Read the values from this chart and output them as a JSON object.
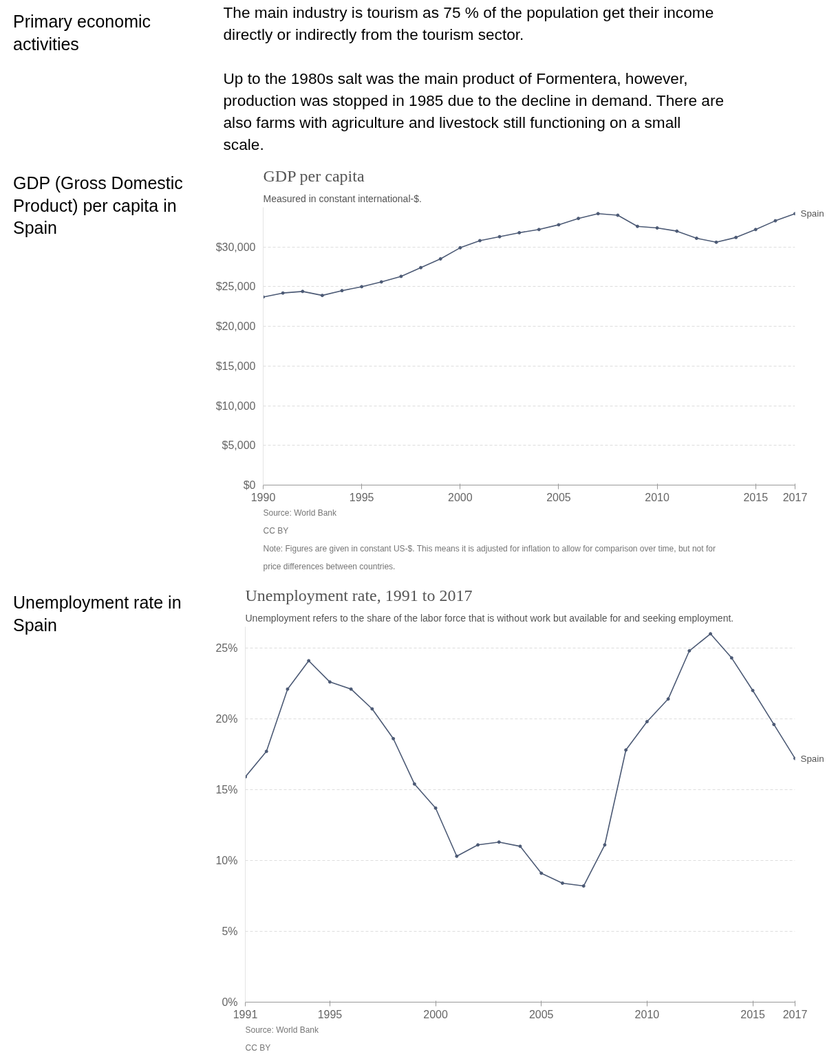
{
  "chart_data": [
    {
      "type": "other",
      "annotations": [
        "Primary economic activities",
        "The main industry is tourism as 75 % of the population get their income directly or indirectly from the tourism sector.",
        "Up to the 1980s salt was the main product of Formentera, however, production was stopped in 1985 due to the decline in demand. There are also farms with agriculture and livestock still functioning on a small scale."
      ]
    },
    {
      "type": "line",
      "title": "GDP per capita",
      "subtitle": "Measured in constant international-$.",
      "x": [
        1990,
        1991,
        1992,
        1993,
        1994,
        1995,
        1996,
        1997,
        1998,
        1999,
        2000,
        2001,
        2002,
        2003,
        2004,
        2005,
        2006,
        2007,
        2008,
        2009,
        2010,
        2011,
        2012,
        2013,
        2014,
        2015,
        2016,
        2017
      ],
      "series": [
        {
          "name": "Spain",
          "color": "#4c5a75",
          "values": [
            23700,
            24200,
            24400,
            23900,
            24500,
            25000,
            25600,
            26300,
            27400,
            28500,
            29900,
            30800,
            31300,
            31800,
            32200,
            32800,
            33600,
            34200,
            34000,
            32600,
            32400,
            32000,
            31100,
            30600,
            31200,
            32200,
            33300,
            34200
          ]
        }
      ],
      "xlim": [
        1990,
        2017
      ],
      "xticks": [
        1990,
        1995,
        2000,
        2005,
        2010,
        2015,
        2017
      ],
      "ylim": [
        0,
        35000
      ],
      "yticks": [
        {
          "value": 0,
          "label": "$0"
        },
        {
          "value": 5000,
          "label": "$5,000"
        },
        {
          "value": 10000,
          "label": "$10,000"
        },
        {
          "value": 15000,
          "label": "$15,000"
        },
        {
          "value": 20000,
          "label": "$20,000"
        },
        {
          "value": 25000,
          "label": "$25,000"
        },
        {
          "value": 30000,
          "label": "$30,000"
        }
      ],
      "grid": "y",
      "marker": "circle",
      "line_style": "solid",
      "annotations": [
        "GDP (Gross Domestic Product) per capita in Spain",
        "Source: World Bank",
        "CC BY",
        "Note: Figures are given in constant US-$. This means it is adjusted for inflation to allow for comparison over time, but not for price differences between countries."
      ]
    },
    {
      "type": "line",
      "title": "Unemployment rate, 1991 to 2017",
      "subtitle": "Unemployment refers to the share of the labor force that is without work but available for and seeking employment.",
      "x": [
        1991,
        1992,
        1993,
        1994,
        1995,
        1996,
        1997,
        1998,
        1999,
        2000,
        2001,
        2002,
        2003,
        2004,
        2005,
        2006,
        2007,
        2008,
        2009,
        2010,
        2011,
        2012,
        2013,
        2014,
        2015,
        2016,
        2017
      ],
      "series": [
        {
          "name": "Spain",
          "color": "#4c5a75",
          "values": [
            15.9,
            17.7,
            22.1,
            24.1,
            22.6,
            22.1,
            20.7,
            18.6,
            15.4,
            13.7,
            10.3,
            11.1,
            11.3,
            11.0,
            9.1,
            8.4,
            8.2,
            11.1,
            17.8,
            19.8,
            21.4,
            24.8,
            26.0,
            24.3,
            22.0,
            19.6,
            17.2
          ]
        }
      ],
      "xlim": [
        1991,
        2017
      ],
      "xticks": [
        1991,
        1995,
        2000,
        2005,
        2010,
        2015,
        2017
      ],
      "ylim": [
        0,
        26.5
      ],
      "yticks": [
        {
          "value": 0,
          "label": "0%"
        },
        {
          "value": 5,
          "label": "5%"
        },
        {
          "value": 10,
          "label": "10%"
        },
        {
          "value": 15,
          "label": "15%"
        },
        {
          "value": 20,
          "label": "20%"
        },
        {
          "value": 25,
          "label": "25%"
        }
      ],
      "grid": "y",
      "marker": "circle",
      "line_style": "solid",
      "annotations": [
        "Unemployment rate in Spain",
        "Source: World Bank",
        "CC BY"
      ]
    }
  ]
}
